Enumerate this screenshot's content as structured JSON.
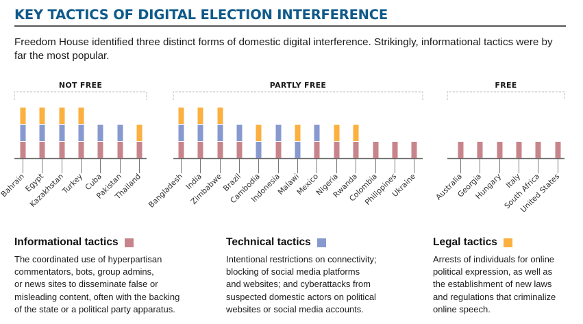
{
  "header": {
    "title": "KEY TACTICS OF DIGITAL ELECTION INTERFERENCE",
    "intro": "Freedom House identified three distinct forms of domestic digital interference. Strikingly, informational tactics were by far the most popular."
  },
  "colors": {
    "informational": "#c8848b",
    "technical": "#8899cf",
    "legal": "#fbb040",
    "title": "#0f5a8a",
    "axis": "#666666"
  },
  "chart_data": {
    "type": "bar",
    "stacked": true,
    "title": "KEY TACTICS OF DIGITAL ELECTION INTERFERENCE",
    "xlabel": "",
    "ylabel": "",
    "ylim": [
      0,
      3
    ],
    "grid": false,
    "legend_position": "bottom",
    "series_order": [
      "Informational tactics",
      "Technical tactics",
      "Legal tactics"
    ],
    "groups": [
      {
        "label": "NOT FREE",
        "countries": [
          {
            "name": "Bahrain",
            "stack": [
              "informational",
              "technical",
              "legal"
            ]
          },
          {
            "name": "Egypt",
            "stack": [
              "informational",
              "technical",
              "legal"
            ]
          },
          {
            "name": "Kazakhstan",
            "stack": [
              "informational",
              "technical",
              "legal"
            ]
          },
          {
            "name": "Turkey",
            "stack": [
              "informational",
              "technical",
              "legal"
            ]
          },
          {
            "name": "Cuba",
            "stack": [
              "informational",
              "technical"
            ]
          },
          {
            "name": "Pakistan",
            "stack": [
              "informational",
              "technical"
            ]
          },
          {
            "name": "Thailand",
            "stack": [
              "informational",
              "legal"
            ]
          }
        ]
      },
      {
        "label": "PARTLY FREE",
        "countries": [
          {
            "name": "Bangladesh",
            "stack": [
              "informational",
              "technical",
              "legal"
            ]
          },
          {
            "name": "India",
            "stack": [
              "informational",
              "technical",
              "legal"
            ]
          },
          {
            "name": "Zimbabwe",
            "stack": [
              "informational",
              "technical",
              "legal"
            ]
          },
          {
            "name": "Brazil",
            "stack": [
              "informational",
              "technical"
            ]
          },
          {
            "name": "Cambodia",
            "stack": [
              "technical",
              "legal"
            ]
          },
          {
            "name": "Indonesia",
            "stack": [
              "informational",
              "technical"
            ]
          },
          {
            "name": "Malawi",
            "stack": [
              "technical",
              "legal"
            ]
          },
          {
            "name": "Mexico",
            "stack": [
              "informational",
              "technical"
            ]
          },
          {
            "name": "Nigeria",
            "stack": [
              "informational",
              "legal"
            ]
          },
          {
            "name": "Rwanda",
            "stack": [
              "informational",
              "legal"
            ]
          },
          {
            "name": "Colombia",
            "stack": [
              "informational"
            ]
          },
          {
            "name": "Philippines",
            "stack": [
              "informational"
            ]
          },
          {
            "name": "Ukraine",
            "stack": [
              "informational"
            ]
          }
        ]
      },
      {
        "label": "FREE",
        "countries": [
          {
            "name": "Australia",
            "stack": [
              "informational"
            ]
          },
          {
            "name": "Georgia",
            "stack": [
              "informational"
            ]
          },
          {
            "name": "Hungary",
            "stack": [
              "informational"
            ]
          },
          {
            "name": "Italy",
            "stack": [
              "informational"
            ]
          },
          {
            "name": "South Africa",
            "stack": [
              "informational"
            ]
          },
          {
            "name": "United States",
            "stack": [
              "informational"
            ]
          }
        ]
      }
    ]
  },
  "legend": [
    {
      "key": "informational",
      "title": "Informational tactics",
      "description": "The coordinated use of hyperpartisan\ncommentators, bots, group admins,\nor news sites to disseminate false or\nmisleading content, often with the backing\nof the state or a political party apparatus."
    },
    {
      "key": "technical",
      "title": "Technical tactics",
      "description": "Intentional restrictions on connectivity;\nblocking of social media platforms\nand websites; and cyberattacks from\nsuspected domestic actors on political\nwebsites or social media accounts."
    },
    {
      "key": "legal",
      "title": "Legal tactics",
      "description": "Arrests of individuals for online\npolitical expression, as well as\nthe establishment of new laws\nand regulations that criminalize\nonline speech."
    }
  ]
}
